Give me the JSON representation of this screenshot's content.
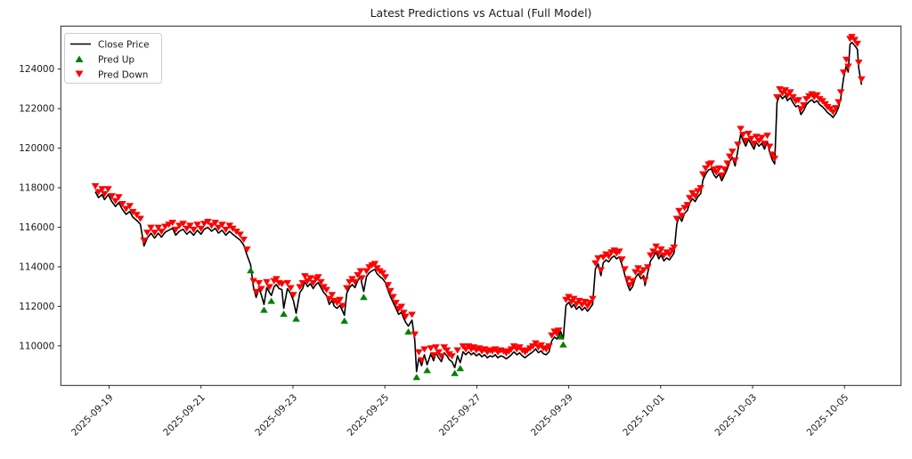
{
  "chart_data": {
    "type": "line",
    "title": "Latest Predictions vs Actual (Full Model)",
    "xlabel": "",
    "ylabel": "",
    "grid": false,
    "legend_position": "upper-left",
    "legend": [
      {
        "label": "Close Price",
        "marker": "line",
        "color": "#000000"
      },
      {
        "label": "Pred Up",
        "marker": "triangle-up",
        "color": "#008000"
      },
      {
        "label": "Pred Down",
        "marker": "triangle-down",
        "color": "#ff0000"
      }
    ],
    "colors": {
      "close_line": "#000000",
      "pred_up": "#008000",
      "pred_down": "#ff0000",
      "spine": "#262626",
      "legend_border": "#cccccc"
    },
    "x_unit": "days since 2025-09-19 00:00",
    "xlim": [
      -1.05,
      17.23
    ],
    "ylim": [
      108000,
      126175
    ],
    "y_ticks": [
      110000,
      112000,
      114000,
      116000,
      118000,
      120000,
      122000,
      124000
    ],
    "x_ticks": [
      {
        "t": 0,
        "label": "2025-09-19"
      },
      {
        "t": 2,
        "label": "2025-09-21"
      },
      {
        "t": 4,
        "label": "2025-09-23"
      },
      {
        "t": 6,
        "label": "2025-09-25"
      },
      {
        "t": 8,
        "label": "2025-09-27"
      },
      {
        "t": 10,
        "label": "2025-09-29"
      },
      {
        "t": 12,
        "label": "2025-10-01"
      },
      {
        "t": 14,
        "label": "2025-10-03"
      },
      {
        "t": 16,
        "label": "2025-10-05"
      }
    ],
    "points": [
      [
        -0.3,
        117800
      ],
      [
        -0.23,
        117500
      ],
      [
        -0.15,
        117650
      ],
      [
        -0.1,
        117400
      ],
      [
        -0.02,
        117650
      ],
      [
        0.06,
        117300
      ],
      [
        0.14,
        117050
      ],
      [
        0.21,
        117250
      ],
      [
        0.29,
        116900
      ],
      [
        0.37,
        116650
      ],
      [
        0.45,
        116800
      ],
      [
        0.52,
        116500
      ],
      [
        0.6,
        116350
      ],
      [
        0.68,
        116150
      ],
      [
        0.76,
        115050
      ],
      [
        0.83,
        115450
      ],
      [
        0.91,
        115700
      ],
      [
        0.99,
        115450
      ],
      [
        1.07,
        115700
      ],
      [
        1.14,
        115500
      ],
      [
        1.22,
        115750
      ],
      [
        1.3,
        115850
      ],
      [
        1.38,
        115950
      ],
      [
        1.45,
        115600
      ],
      [
        1.53,
        115800
      ],
      [
        1.61,
        115900
      ],
      [
        1.69,
        115650
      ],
      [
        1.76,
        115800
      ],
      [
        1.84,
        115600
      ],
      [
        1.92,
        115850
      ],
      [
        2.0,
        115650
      ],
      [
        2.07,
        115900
      ],
      [
        2.15,
        116000
      ],
      [
        2.23,
        115800
      ],
      [
        2.31,
        115950
      ],
      [
        2.38,
        115700
      ],
      [
        2.46,
        115850
      ],
      [
        2.54,
        115600
      ],
      [
        2.62,
        115800
      ],
      [
        2.69,
        115650
      ],
      [
        2.77,
        115500
      ],
      [
        2.85,
        115350
      ],
      [
        2.93,
        115100
      ],
      [
        3.0,
        114600
      ],
      [
        3.08,
        114100,
        1
      ],
      [
        3.14,
        113000
      ],
      [
        3.2,
        112450
      ],
      [
        3.26,
        112900
      ],
      [
        3.31,
        112600
      ],
      [
        3.37,
        112100,
        1
      ],
      [
        3.43,
        112950
      ],
      [
        3.49,
        112700
      ],
      [
        3.53,
        112550,
        1
      ],
      [
        3.59,
        113000
      ],
      [
        3.64,
        113100
      ],
      [
        3.7,
        112900
      ],
      [
        3.76,
        112850
      ],
      [
        3.8,
        111900,
        1
      ],
      [
        3.88,
        112900
      ],
      [
        3.95,
        112650
      ],
      [
        4.01,
        112300
      ],
      [
        4.07,
        111650,
        1
      ],
      [
        4.15,
        112700
      ],
      [
        4.21,
        112900
      ],
      [
        4.26,
        113250
      ],
      [
        4.32,
        113000
      ],
      [
        4.38,
        113150
      ],
      [
        4.44,
        112900
      ],
      [
        4.5,
        113100
      ],
      [
        4.55,
        113200
      ],
      [
        4.61,
        112950
      ],
      [
        4.67,
        112700
      ],
      [
        4.73,
        112550
      ],
      [
        4.79,
        112100
      ],
      [
        4.85,
        112300
      ],
      [
        4.9,
        112000
      ],
      [
        4.96,
        111900
      ],
      [
        5.02,
        112050
      ],
      [
        5.08,
        111750
      ],
      [
        5.12,
        111550,
        1
      ],
      [
        5.17,
        112650
      ],
      [
        5.23,
        112950
      ],
      [
        5.29,
        113100
      ],
      [
        5.35,
        112950
      ],
      [
        5.41,
        113300
      ],
      [
        5.47,
        113500
      ],
      [
        5.5,
        113150
      ],
      [
        5.54,
        112750,
        1
      ],
      [
        5.6,
        113500
      ],
      [
        5.66,
        113700
      ],
      [
        5.72,
        113800
      ],
      [
        5.78,
        113870
      ],
      [
        5.83,
        113650
      ],
      [
        5.89,
        113500
      ],
      [
        5.95,
        113400
      ],
      [
        6.01,
        113200
      ],
      [
        6.07,
        112800
      ],
      [
        6.12,
        112500
      ],
      [
        6.18,
        112200
      ],
      [
        6.24,
        111900
      ],
      [
        6.3,
        111600
      ],
      [
        6.36,
        111700
      ],
      [
        6.41,
        111400
      ],
      [
        6.45,
        111200
      ],
      [
        6.51,
        111000,
        1
      ],
      [
        6.59,
        111300
      ],
      [
        6.65,
        110300
      ],
      [
        6.69,
        108700,
        1
      ],
      [
        6.74,
        109400
      ],
      [
        6.8,
        109000
      ],
      [
        6.86,
        109550
      ],
      [
        6.92,
        109050,
        1
      ],
      [
        7.0,
        109600
      ],
      [
        7.06,
        109250
      ],
      [
        7.11,
        109650
      ],
      [
        7.17,
        109400
      ],
      [
        7.23,
        109200
      ],
      [
        7.29,
        109650
      ],
      [
        7.35,
        109500
      ],
      [
        7.4,
        109300
      ],
      [
        7.46,
        109200
      ],
      [
        7.52,
        108900,
        1
      ],
      [
        7.58,
        109500
      ],
      [
        7.64,
        109150,
        1
      ],
      [
        7.7,
        109700
      ],
      [
        7.76,
        109550
      ],
      [
        7.82,
        109700
      ],
      [
        7.88,
        109550
      ],
      [
        7.93,
        109650
      ],
      [
        7.99,
        109500
      ],
      [
        8.05,
        109600
      ],
      [
        8.11,
        109450
      ],
      [
        8.17,
        109550
      ],
      [
        8.23,
        109400
      ],
      [
        8.29,
        109500
      ],
      [
        8.34,
        109450
      ],
      [
        8.4,
        109550
      ],
      [
        8.46,
        109400
      ],
      [
        8.52,
        109500
      ],
      [
        8.58,
        109450
      ],
      [
        8.64,
        109350
      ],
      [
        8.7,
        109450
      ],
      [
        8.75,
        109550
      ],
      [
        8.81,
        109700
      ],
      [
        8.87,
        109550
      ],
      [
        8.93,
        109650
      ],
      [
        8.99,
        109500
      ],
      [
        9.05,
        109400
      ],
      [
        9.1,
        109500
      ],
      [
        9.16,
        109600
      ],
      [
        9.22,
        109700
      ],
      [
        9.28,
        109850
      ],
      [
        9.34,
        109650
      ],
      [
        9.4,
        109750
      ],
      [
        9.45,
        109600
      ],
      [
        9.51,
        109550
      ],
      [
        9.57,
        109700
      ],
      [
        9.63,
        110250
      ],
      [
        9.69,
        110450
      ],
      [
        9.74,
        110350
      ],
      [
        9.78,
        110500
      ],
      [
        9.82,
        110750,
        1
      ],
      [
        9.88,
        110350,
        1
      ],
      [
        9.94,
        112050
      ],
      [
        10.0,
        112200
      ],
      [
        10.06,
        111950
      ],
      [
        10.11,
        112100
      ],
      [
        10.17,
        111850
      ],
      [
        10.23,
        112000
      ],
      [
        10.29,
        111800
      ],
      [
        10.35,
        111950
      ],
      [
        10.41,
        111750
      ],
      [
        10.46,
        111900
      ],
      [
        10.52,
        112100
      ],
      [
        10.58,
        113900
      ],
      [
        10.64,
        114150
      ],
      [
        10.7,
        113550
      ],
      [
        10.75,
        114200
      ],
      [
        10.81,
        114350
      ],
      [
        10.87,
        114250
      ],
      [
        10.93,
        114450
      ],
      [
        10.99,
        114550
      ],
      [
        11.04,
        114400
      ],
      [
        11.1,
        114500
      ],
      [
        11.16,
        114100
      ],
      [
        11.22,
        113600
      ],
      [
        11.28,
        113100
      ],
      [
        11.33,
        112800
      ],
      [
        11.39,
        113000
      ],
      [
        11.45,
        113450
      ],
      [
        11.51,
        113650
      ],
      [
        11.57,
        113400
      ],
      [
        11.63,
        113550
      ],
      [
        11.66,
        113050
      ],
      [
        11.72,
        113700
      ],
      [
        11.78,
        114300
      ],
      [
        11.84,
        114500
      ],
      [
        11.9,
        114750
      ],
      [
        11.96,
        114400
      ],
      [
        12.01,
        114600
      ],
      [
        12.07,
        114300
      ],
      [
        12.13,
        114450
      ],
      [
        12.19,
        114350
      ],
      [
        12.25,
        114550
      ],
      [
        12.29,
        114700
      ],
      [
        12.35,
        116150
      ],
      [
        12.4,
        116550
      ],
      [
        12.46,
        116300
      ],
      [
        12.52,
        116700
      ],
      [
        12.58,
        116850
      ],
      [
        12.63,
        117200
      ],
      [
        12.69,
        117450
      ],
      [
        12.75,
        117300
      ],
      [
        12.81,
        117550
      ],
      [
        12.87,
        117700
      ],
      [
        12.92,
        118400
      ],
      [
        12.98,
        118700
      ],
      [
        13.04,
        118900
      ],
      [
        13.1,
        118950
      ],
      [
        13.16,
        118650
      ],
      [
        13.21,
        118500
      ],
      [
        13.27,
        118700
      ],
      [
        13.33,
        118350
      ],
      [
        13.39,
        118650
      ],
      [
        13.45,
        118950
      ],
      [
        13.5,
        119300
      ],
      [
        13.56,
        119550
      ],
      [
        13.62,
        119100
      ],
      [
        13.68,
        119900
      ],
      [
        13.74,
        120700
      ],
      [
        13.79,
        120400
      ],
      [
        13.85,
        120100
      ],
      [
        13.91,
        120450
      ],
      [
        13.97,
        120200
      ],
      [
        14.03,
        119950
      ],
      [
        14.08,
        120300
      ],
      [
        14.14,
        120100
      ],
      [
        14.2,
        120250
      ],
      [
        14.26,
        119950
      ],
      [
        14.32,
        120350
      ],
      [
        14.37,
        119800
      ],
      [
        14.43,
        119400
      ],
      [
        14.48,
        119200
      ],
      [
        14.53,
        122300
      ],
      [
        14.59,
        122700
      ],
      [
        14.65,
        122500
      ],
      [
        14.71,
        122650
      ],
      [
        14.76,
        122400
      ],
      [
        14.82,
        122550
      ],
      [
        14.88,
        122300
      ],
      [
        14.94,
        122100
      ],
      [
        15.0,
        122150
      ],
      [
        15.05,
        121700
      ],
      [
        15.11,
        121900
      ],
      [
        15.17,
        122200
      ],
      [
        15.23,
        122350
      ],
      [
        15.29,
        122450
      ],
      [
        15.34,
        122300
      ],
      [
        15.4,
        122400
      ],
      [
        15.46,
        122200
      ],
      [
        15.52,
        122100
      ],
      [
        15.58,
        121950
      ],
      [
        15.63,
        121800
      ],
      [
        15.69,
        121700
      ],
      [
        15.75,
        121550
      ],
      [
        15.81,
        121750
      ],
      [
        15.87,
        122050
      ],
      [
        15.92,
        122550
      ],
      [
        15.98,
        123550
      ],
      [
        16.04,
        124200
      ],
      [
        16.08,
        123850
      ],
      [
        16.12,
        125250
      ],
      [
        16.16,
        125350
      ],
      [
        16.22,
        125200
      ],
      [
        16.28,
        125000
      ],
      [
        16.31,
        124050
      ],
      [
        16.37,
        123200
      ]
    ]
  }
}
